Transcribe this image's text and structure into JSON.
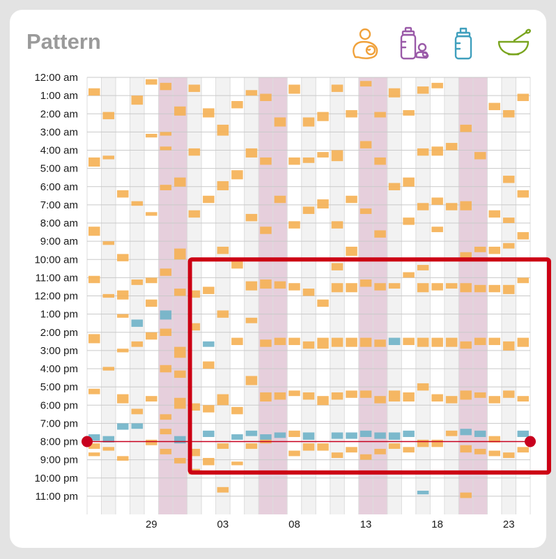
{
  "title": "Pattern",
  "filters": [
    {
      "name": "nursing-icon",
      "color": "#f0a13a"
    },
    {
      "name": "pumped-icon",
      "color": "#9a5aa8"
    },
    {
      "name": "bottle-icon",
      "color": "#3f9fbd"
    },
    {
      "name": "solids-icon",
      "color": "#7aa51f"
    }
  ],
  "colors": {
    "nursing": "#f5b053",
    "bottle": "#6fb3c8",
    "weekend_band": "#e6cfdc",
    "grid_alt": "#f2f2f2",
    "marker": "#c8001e",
    "highlight": "#cc0014"
  },
  "chart_data": {
    "type": "heatmap",
    "y_axis": {
      "labels": [
        "12:00 am",
        "1:00 am",
        "2:00 am",
        "3:00 am",
        "4:00 am",
        "5:00 am",
        "6:00 am",
        "7:00 am",
        "8:00 am",
        "9:00 am",
        "10:00 am",
        "11:00 am",
        "12:00 pm",
        "1:00 pm",
        "2:00 pm",
        "3:00 pm",
        "4:00 pm",
        "5:00 pm",
        "6:00 pm",
        "7:00 pm",
        "8:00 pm",
        "9:00 pm",
        "10:00 pm",
        "11:00 pm"
      ],
      "range_hours": [
        0,
        24
      ]
    },
    "x_axis": {
      "labels": [
        {
          "text": "29",
          "day": 4
        },
        {
          "text": "03",
          "day": 9
        },
        {
          "text": "08",
          "day": 14
        },
        {
          "text": "13",
          "day": 19
        },
        {
          "text": "18",
          "day": 24
        },
        {
          "text": "23",
          "day": 29
        }
      ],
      "day_count": 31
    },
    "weekend_days": [
      5,
      12,
      19,
      26
    ],
    "time_marker_hour": 20.0,
    "highlight_box": {
      "day_start": 7,
      "day_end": 31,
      "hour_start": 10.0,
      "hour_end": 21.7
    },
    "feeds": [
      [
        0,
        0.6,
        0.4,
        "n"
      ],
      [
        0,
        4.4,
        0.5,
        "n"
      ],
      [
        0,
        8.2,
        0.5,
        "n"
      ],
      [
        0,
        10.9,
        0.4,
        "n"
      ],
      [
        0,
        14.1,
        0.5,
        "n"
      ],
      [
        0,
        17.1,
        0.3,
        "n"
      ],
      [
        0,
        19.6,
        0.35,
        "b"
      ],
      [
        0,
        20.1,
        0.3,
        "n"
      ],
      [
        0,
        20.6,
        0.2,
        "n"
      ],
      [
        1,
        1.9,
        0.4,
        "n"
      ],
      [
        1,
        4.3,
        0.2,
        "n"
      ],
      [
        1,
        9.0,
        0.2,
        "n"
      ],
      [
        1,
        11.9,
        0.2,
        "n"
      ],
      [
        1,
        15.9,
        0.2,
        "n"
      ],
      [
        1,
        19.7,
        0.35,
        "b"
      ],
      [
        1,
        20.3,
        0.2,
        "n"
      ],
      [
        2,
        6.2,
        0.4,
        "n"
      ],
      [
        2,
        9.7,
        0.4,
        "n"
      ],
      [
        2,
        11.7,
        0.5,
        "n"
      ],
      [
        2,
        13.0,
        0.2,
        "n"
      ],
      [
        2,
        14.9,
        0.2,
        "n"
      ],
      [
        2,
        17.4,
        0.5,
        "n"
      ],
      [
        2,
        19.0,
        0.35,
        "b"
      ],
      [
        2,
        20.8,
        0.25,
        "n"
      ],
      [
        3,
        1.0,
        0.5,
        "n"
      ],
      [
        3,
        6.8,
        0.25,
        "n"
      ],
      [
        3,
        11.1,
        0.3,
        "n"
      ],
      [
        3,
        13.3,
        0.4,
        "b"
      ],
      [
        3,
        14.5,
        0.3,
        "n"
      ],
      [
        3,
        18.2,
        0.3,
        "n"
      ],
      [
        3,
        19.0,
        0.3,
        "b"
      ],
      [
        4,
        0.1,
        0.3,
        "n"
      ],
      [
        4,
        3.1,
        0.2,
        "n"
      ],
      [
        4,
        7.4,
        0.2,
        "n"
      ],
      [
        4,
        11.0,
        0.3,
        "n"
      ],
      [
        4,
        12.2,
        0.4,
        "n"
      ],
      [
        4,
        14.0,
        0.4,
        "n"
      ],
      [
        4,
        17.5,
        0.3,
        "n"
      ],
      [
        4,
        19.9,
        0.3,
        "n"
      ],
      [
        5,
        0.3,
        0.4,
        "n"
      ],
      [
        5,
        3.0,
        0.2,
        "n"
      ],
      [
        5,
        3.8,
        0.2,
        "n"
      ],
      [
        5,
        5.9,
        0.3,
        "n"
      ],
      [
        5,
        10.5,
        0.4,
        "n"
      ],
      [
        5,
        12.8,
        0.5,
        "b"
      ],
      [
        5,
        13.8,
        0.4,
        "n"
      ],
      [
        5,
        15.8,
        0.4,
        "n"
      ],
      [
        5,
        18.5,
        0.3,
        "n"
      ],
      [
        5,
        19.3,
        0.3,
        "n"
      ],
      [
        5,
        20.4,
        0.3,
        "n"
      ],
      [
        6,
        1.6,
        0.5,
        "n"
      ],
      [
        6,
        5.5,
        0.5,
        "n"
      ],
      [
        6,
        9.4,
        0.6,
        "n"
      ],
      [
        6,
        11.6,
        0.4,
        "n"
      ],
      [
        6,
        14.8,
        0.6,
        "n"
      ],
      [
        6,
        16.1,
        0.4,
        "n"
      ],
      [
        6,
        17.6,
        0.6,
        "n"
      ],
      [
        6,
        19.7,
        0.4,
        "b"
      ],
      [
        6,
        20.9,
        0.3,
        "n"
      ],
      [
        7,
        0.4,
        0.4,
        "n"
      ],
      [
        7,
        3.9,
        0.4,
        "n"
      ],
      [
        7,
        7.3,
        0.4,
        "n"
      ],
      [
        7,
        11.7,
        0.4,
        "n"
      ],
      [
        7,
        13.5,
        0.4,
        "n"
      ],
      [
        7,
        17.9,
        0.4,
        "n"
      ],
      [
        7,
        20.4,
        0.4,
        "n"
      ],
      [
        7,
        21.5,
        0.3,
        "n"
      ],
      [
        8,
        1.7,
        0.5,
        "n"
      ],
      [
        8,
        6.5,
        0.4,
        "n"
      ],
      [
        8,
        11.5,
        0.4,
        "n"
      ],
      [
        8,
        14.5,
        0.3,
        "b"
      ],
      [
        8,
        15.6,
        0.4,
        "n"
      ],
      [
        8,
        18.0,
        0.4,
        "n"
      ],
      [
        8,
        19.4,
        0.35,
        "b"
      ],
      [
        8,
        20.9,
        0.4,
        "n"
      ],
      [
        9,
        2.6,
        0.6,
        "n"
      ],
      [
        9,
        5.7,
        0.5,
        "n"
      ],
      [
        9,
        9.3,
        0.4,
        "n"
      ],
      [
        9,
        12.8,
        0.4,
        "n"
      ],
      [
        9,
        17.4,
        0.6,
        "n"
      ],
      [
        9,
        20.1,
        0.3,
        "n"
      ],
      [
        9,
        22.5,
        0.3,
        "n"
      ],
      [
        10,
        1.3,
        0.4,
        "n"
      ],
      [
        10,
        5.1,
        0.5,
        "n"
      ],
      [
        10,
        10.1,
        0.4,
        "n"
      ],
      [
        10,
        14.3,
        0.4,
        "n"
      ],
      [
        10,
        18.1,
        0.4,
        "n"
      ],
      [
        10,
        19.6,
        0.3,
        "b"
      ],
      [
        10,
        21.1,
        0.2,
        "n"
      ],
      [
        11,
        0.7,
        0.3,
        "n"
      ],
      [
        11,
        3.9,
        0.5,
        "n"
      ],
      [
        11,
        7.5,
        0.4,
        "n"
      ],
      [
        11,
        11.2,
        0.5,
        "n"
      ],
      [
        11,
        13.2,
        0.3,
        "n"
      ],
      [
        11,
        16.4,
        0.5,
        "n"
      ],
      [
        11,
        19.4,
        0.3,
        "b"
      ],
      [
        11,
        20.1,
        0.3,
        "n"
      ],
      [
        12,
        0.9,
        0.4,
        "n"
      ],
      [
        12,
        4.4,
        0.4,
        "n"
      ],
      [
        12,
        8.2,
        0.4,
        "n"
      ],
      [
        12,
        11.1,
        0.5,
        "n"
      ],
      [
        12,
        14.4,
        0.4,
        "n"
      ],
      [
        12,
        17.3,
        0.5,
        "n"
      ],
      [
        12,
        19.6,
        0.3,
        "b"
      ],
      [
        12,
        19.9,
        0.2,
        "n"
      ],
      [
        13,
        2.2,
        0.5,
        "n"
      ],
      [
        13,
        6.5,
        0.4,
        "n"
      ],
      [
        13,
        11.2,
        0.4,
        "n"
      ],
      [
        13,
        14.3,
        0.4,
        "n"
      ],
      [
        13,
        17.3,
        0.4,
        "n"
      ],
      [
        13,
        19.5,
        0.3,
        "b"
      ],
      [
        14,
        0.4,
        0.5,
        "n"
      ],
      [
        14,
        4.4,
        0.4,
        "n"
      ],
      [
        14,
        7.9,
        0.4,
        "n"
      ],
      [
        14,
        11.3,
        0.4,
        "n"
      ],
      [
        14,
        14.3,
        0.4,
        "n"
      ],
      [
        14,
        17.2,
        0.3,
        "n"
      ],
      [
        14,
        19.4,
        0.35,
        "n"
      ],
      [
        14,
        20.5,
        0.3,
        "n"
      ],
      [
        15,
        2.2,
        0.5,
        "n"
      ],
      [
        15,
        4.4,
        0.3,
        "n"
      ],
      [
        15,
        7.1,
        0.4,
        "n"
      ],
      [
        15,
        11.6,
        0.4,
        "n"
      ],
      [
        15,
        14.5,
        0.4,
        "n"
      ],
      [
        15,
        17.3,
        0.4,
        "n"
      ],
      [
        15,
        19.5,
        0.4,
        "b"
      ],
      [
        15,
        20.1,
        0.4,
        "n"
      ],
      [
        16,
        1.9,
        0.5,
        "n"
      ],
      [
        16,
        4.1,
        0.3,
        "n"
      ],
      [
        16,
        6.7,
        0.5,
        "n"
      ],
      [
        16,
        12.2,
        0.4,
        "n"
      ],
      [
        16,
        14.3,
        0.6,
        "n"
      ],
      [
        16,
        17.5,
        0.5,
        "n"
      ],
      [
        16,
        20.1,
        0.4,
        "n"
      ],
      [
        17,
        0.4,
        0.4,
        "n"
      ],
      [
        17,
        4.0,
        0.6,
        "n"
      ],
      [
        17,
        7.9,
        0.4,
        "n"
      ],
      [
        17,
        10.2,
        0.4,
        "n"
      ],
      [
        17,
        11.3,
        0.5,
        "n"
      ],
      [
        17,
        14.3,
        0.5,
        "n"
      ],
      [
        17,
        17.3,
        0.4,
        "n"
      ],
      [
        17,
        19.5,
        0.35,
        "b"
      ],
      [
        17,
        20.6,
        0.3,
        "n"
      ],
      [
        18,
        1.8,
        0.4,
        "n"
      ],
      [
        18,
        6.5,
        0.4,
        "n"
      ],
      [
        18,
        9.3,
        0.5,
        "n"
      ],
      [
        18,
        11.3,
        0.5,
        "n"
      ],
      [
        18,
        14.3,
        0.5,
        "n"
      ],
      [
        18,
        17.2,
        0.4,
        "n"
      ],
      [
        18,
        19.5,
        0.35,
        "b"
      ],
      [
        18,
        20.3,
        0.3,
        "n"
      ],
      [
        19,
        0.2,
        0.3,
        "n"
      ],
      [
        19,
        3.5,
        0.4,
        "n"
      ],
      [
        19,
        7.2,
        0.3,
        "n"
      ],
      [
        19,
        11.1,
        0.4,
        "n"
      ],
      [
        19,
        14.3,
        0.5,
        "n"
      ],
      [
        19,
        17.2,
        0.4,
        "n"
      ],
      [
        19,
        19.4,
        0.35,
        "b"
      ],
      [
        19,
        20.7,
        0.3,
        "n"
      ],
      [
        20,
        1.9,
        0.3,
        "n"
      ],
      [
        20,
        4.4,
        0.4,
        "n"
      ],
      [
        20,
        8.4,
        0.4,
        "n"
      ],
      [
        20,
        11.3,
        0.4,
        "n"
      ],
      [
        20,
        14.4,
        0.4,
        "n"
      ],
      [
        20,
        17.5,
        0.4,
        "n"
      ],
      [
        20,
        19.5,
        0.35,
        "b"
      ],
      [
        20,
        20.4,
        0.3,
        "n"
      ],
      [
        21,
        0.6,
        0.5,
        "n"
      ],
      [
        21,
        5.8,
        0.4,
        "n"
      ],
      [
        21,
        11.3,
        0.3,
        "n"
      ],
      [
        21,
        14.3,
        0.4,
        "b"
      ],
      [
        21,
        17.2,
        0.6,
        "n"
      ],
      [
        21,
        19.5,
        0.4,
        "b"
      ],
      [
        21,
        20.1,
        0.3,
        "n"
      ],
      [
        22,
        1.8,
        0.3,
        "n"
      ],
      [
        22,
        5.5,
        0.5,
        "n"
      ],
      [
        22,
        7.7,
        0.4,
        "n"
      ],
      [
        22,
        10.7,
        0.3,
        "n"
      ],
      [
        22,
        14.3,
        0.4,
        "n"
      ],
      [
        22,
        17.3,
        0.5,
        "n"
      ],
      [
        22,
        19.4,
        0.35,
        "b"
      ],
      [
        22,
        20.3,
        0.3,
        "n"
      ],
      [
        23,
        0.5,
        0.4,
        "n"
      ],
      [
        23,
        3.9,
        0.4,
        "n"
      ],
      [
        23,
        6.9,
        0.4,
        "n"
      ],
      [
        23,
        10.3,
        0.3,
        "n"
      ],
      [
        23,
        11.3,
        0.5,
        "n"
      ],
      [
        23,
        14.3,
        0.5,
        "n"
      ],
      [
        23,
        16.8,
        0.4,
        "n"
      ],
      [
        23,
        19.9,
        0.4,
        "n"
      ],
      [
        23,
        22.7,
        0.2,
        "b"
      ],
      [
        24,
        0.3,
        0.3,
        "n"
      ],
      [
        24,
        3.8,
        0.5,
        "n"
      ],
      [
        24,
        6.6,
        0.4,
        "n"
      ],
      [
        24,
        8.2,
        0.3,
        "n"
      ],
      [
        24,
        11.3,
        0.4,
        "n"
      ],
      [
        24,
        14.3,
        0.5,
        "n"
      ],
      [
        24,
        17.4,
        0.4,
        "n"
      ],
      [
        24,
        19.9,
        0.4,
        "n"
      ],
      [
        25,
        3.6,
        0.4,
        "n"
      ],
      [
        25,
        6.9,
        0.4,
        "n"
      ],
      [
        25,
        11.3,
        0.3,
        "n"
      ],
      [
        25,
        14.3,
        0.5,
        "n"
      ],
      [
        25,
        17.5,
        0.4,
        "n"
      ],
      [
        25,
        19.4,
        0.3,
        "n"
      ],
      [
        26,
        2.6,
        0.4,
        "n"
      ],
      [
        26,
        6.8,
        0.5,
        "n"
      ],
      [
        26,
        9.6,
        0.4,
        "n"
      ],
      [
        26,
        11.3,
        0.5,
        "n"
      ],
      [
        26,
        14.5,
        0.4,
        "n"
      ],
      [
        26,
        17.2,
        0.5,
        "n"
      ],
      [
        26,
        19.3,
        0.35,
        "b"
      ],
      [
        26,
        20.2,
        0.4,
        "n"
      ],
      [
        26,
        22.8,
        0.3,
        "n"
      ],
      [
        27,
        4.1,
        0.4,
        "n"
      ],
      [
        27,
        9.3,
        0.3,
        "n"
      ],
      [
        27,
        11.4,
        0.4,
        "n"
      ],
      [
        27,
        14.3,
        0.4,
        "n"
      ],
      [
        27,
        17.3,
        0.3,
        "n"
      ],
      [
        27,
        19.4,
        0.35,
        "b"
      ],
      [
        27,
        20.4,
        0.3,
        "n"
      ],
      [
        28,
        1.4,
        0.4,
        "n"
      ],
      [
        28,
        7.3,
        0.4,
        "n"
      ],
      [
        28,
        9.3,
        0.4,
        "n"
      ],
      [
        28,
        11.4,
        0.4,
        "n"
      ],
      [
        28,
        14.3,
        0.4,
        "n"
      ],
      [
        28,
        17.5,
        0.4,
        "n"
      ],
      [
        28,
        19.7,
        0.35,
        "n"
      ],
      [
        28,
        20.5,
        0.3,
        "n"
      ],
      [
        29,
        1.8,
        0.4,
        "n"
      ],
      [
        29,
        5.4,
        0.4,
        "n"
      ],
      [
        29,
        7.7,
        0.3,
        "n"
      ],
      [
        29,
        9.1,
        0.3,
        "n"
      ],
      [
        29,
        11.4,
        0.5,
        "n"
      ],
      [
        29,
        14.5,
        0.5,
        "n"
      ],
      [
        29,
        17.2,
        0.4,
        "n"
      ],
      [
        29,
        20.6,
        0.3,
        "n"
      ],
      [
        30,
        0.9,
        0.4,
        "n"
      ],
      [
        30,
        6.2,
        0.4,
        "n"
      ],
      [
        30,
        8.5,
        0.4,
        "n"
      ],
      [
        30,
        11.0,
        0.3,
        "n"
      ],
      [
        30,
        14.3,
        0.5,
        "n"
      ],
      [
        30,
        17.5,
        0.3,
        "n"
      ],
      [
        30,
        19.4,
        0.35,
        "b"
      ],
      [
        30,
        20.3,
        0.3,
        "n"
      ]
    ]
  }
}
